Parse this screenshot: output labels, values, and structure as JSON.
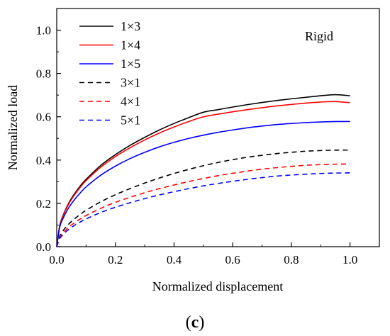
{
  "chart_data": {
    "type": "line",
    "xlabel": "Normalized displacement",
    "ylabel": "Normalized load",
    "xlim": [
      0.0,
      1.1
    ],
    "ylim": [
      0.0,
      1.1
    ],
    "x_ticks": [
      0.0,
      0.2,
      0.4,
      0.6,
      0.8,
      1.0
    ],
    "y_ticks": [
      0.0,
      0.2,
      0.4,
      0.6,
      0.8,
      1.0
    ],
    "x_tick_labels": [
      "0.0",
      "0.2",
      "0.4",
      "0.6",
      "0.8",
      "1.0"
    ],
    "y_tick_labels": [
      "0.0",
      "0.2",
      "0.4",
      "0.6",
      "0.8",
      "1.0"
    ],
    "annotation": "Rigid",
    "panel_label": {
      "open": "(",
      "letter": "c",
      "close": ")"
    },
    "legend_position": "top-left",
    "grid": false,
    "x": [
      0.0,
      0.01,
      0.02,
      0.04,
      0.06,
      0.08,
      0.1,
      0.15,
      0.2,
      0.25,
      0.3,
      0.35,
      0.4,
      0.45,
      0.5,
      0.55,
      0.6,
      0.65,
      0.7,
      0.75,
      0.8,
      0.85,
      0.9,
      0.95,
      1.0
    ],
    "series": [
      {
        "name": "1×3",
        "color": "#000000",
        "dash": "solid",
        "values": [
          0.0,
          0.096,
          0.139,
          0.199,
          0.243,
          0.28,
          0.311,
          0.375,
          0.425,
          0.468,
          0.505,
          0.539,
          0.569,
          0.596,
          0.621,
          0.633,
          0.645,
          0.656,
          0.666,
          0.675,
          0.683,
          0.69,
          0.697,
          0.702,
          0.697
        ]
      },
      {
        "name": "1×4",
        "color": "#ff0000",
        "dash": "solid",
        "values": [
          0.0,
          0.095,
          0.137,
          0.195,
          0.238,
          0.274,
          0.305,
          0.367,
          0.416,
          0.457,
          0.493,
          0.525,
          0.553,
          0.578,
          0.6,
          0.612,
          0.623,
          0.633,
          0.642,
          0.65,
          0.657,
          0.663,
          0.668,
          0.67,
          0.665
        ]
      },
      {
        "name": "1×5",
        "color": "#0000ff",
        "dash": "solid",
        "values": [
          0.0,
          0.089,
          0.126,
          0.178,
          0.216,
          0.248,
          0.276,
          0.33,
          0.372,
          0.407,
          0.436,
          0.461,
          0.482,
          0.5,
          0.515,
          0.528,
          0.539,
          0.549,
          0.557,
          0.564,
          0.569,
          0.573,
          0.576,
          0.578,
          0.578
        ]
      },
      {
        "name": "3×1",
        "color": "#000000",
        "dash": "dashed",
        "values": [
          0.0,
          0.048,
          0.071,
          0.103,
          0.128,
          0.149,
          0.168,
          0.207,
          0.24,
          0.268,
          0.294,
          0.317,
          0.338,
          0.357,
          0.374,
          0.389,
          0.402,
          0.413,
          0.422,
          0.43,
          0.436,
          0.441,
          0.444,
          0.446,
          0.446
        ]
      },
      {
        "name": "4×1",
        "color": "#ff0000",
        "dash": "dashed",
        "values": [
          0.0,
          0.042,
          0.061,
          0.089,
          0.11,
          0.128,
          0.144,
          0.177,
          0.205,
          0.228,
          0.249,
          0.268,
          0.285,
          0.301,
          0.315,
          0.328,
          0.339,
          0.349,
          0.358,
          0.365,
          0.371,
          0.376,
          0.379,
          0.381,
          0.382
        ]
      },
      {
        "name": "5×1",
        "color": "#0000ff",
        "dash": "dashed",
        "values": [
          0.0,
          0.037,
          0.054,
          0.079,
          0.098,
          0.114,
          0.128,
          0.158,
          0.182,
          0.203,
          0.222,
          0.239,
          0.254,
          0.268,
          0.281,
          0.292,
          0.302,
          0.311,
          0.319,
          0.326,
          0.331,
          0.335,
          0.338,
          0.34,
          0.341
        ]
      }
    ]
  }
}
